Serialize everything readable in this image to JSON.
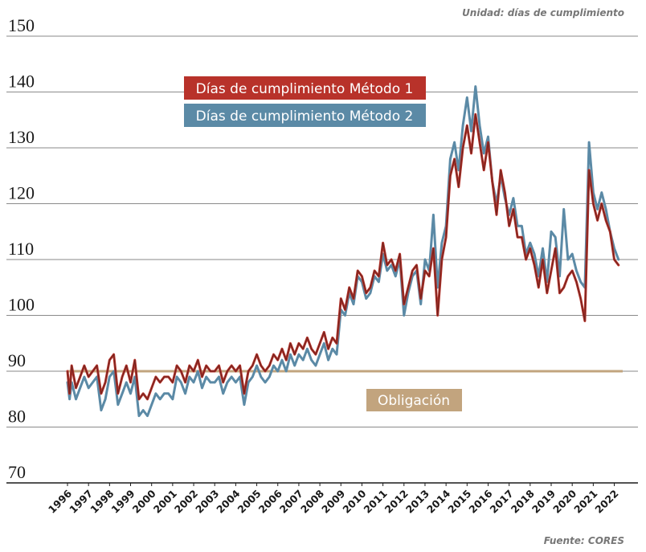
{
  "unit_note": "Unidad: días de cumplimiento",
  "source_note": "Fuente: CORES",
  "chart_data": {
    "type": "line",
    "ylim": [
      70,
      150
    ],
    "yticks": [
      70,
      80,
      90,
      100,
      110,
      120,
      130,
      140,
      150
    ],
    "xlim": [
      1996,
      2022.4
    ],
    "xticks": [
      1996,
      1997,
      1998,
      1999,
      2000,
      2001,
      2002,
      2003,
      2004,
      2005,
      2006,
      2007,
      2008,
      2009,
      2010,
      2011,
      2012,
      2013,
      2014,
      2015,
      2016,
      2017,
      2018,
      2019,
      2020,
      2021,
      2022
    ],
    "series": [
      {
        "name": "Días de cumplimiento Método 1",
        "color": "#b8322a",
        "x": [
          1996.0,
          1996.1,
          1996.2,
          1996.4,
          1996.6,
          1996.8,
          1997.0,
          1997.2,
          1997.4,
          1997.6,
          1997.8,
          1998.0,
          1998.2,
          1998.4,
          1998.6,
          1998.8,
          1999.0,
          1999.2,
          1999.4,
          1999.6,
          1999.8,
          2000.0,
          2000.2,
          2000.4,
          2000.6,
          2000.8,
          2001.0,
          2001.2,
          2001.4,
          2001.6,
          2001.8,
          2002.0,
          2002.2,
          2002.4,
          2002.6,
          2002.8,
          2003.0,
          2003.2,
          2003.4,
          2003.6,
          2003.8,
          2004.0,
          2004.2,
          2004.4,
          2004.6,
          2004.8,
          2005.0,
          2005.2,
          2005.4,
          2005.6,
          2005.8,
          2006.0,
          2006.2,
          2006.4,
          2006.6,
          2006.8,
          2007.0,
          2007.2,
          2007.4,
          2007.6,
          2007.8,
          2008.0,
          2008.2,
          2008.4,
          2008.6,
          2008.8,
          2009.0,
          2009.2,
          2009.4,
          2009.6,
          2009.8,
          2010.0,
          2010.2,
          2010.4,
          2010.6,
          2010.8,
          2011.0,
          2011.2,
          2011.4,
          2011.6,
          2011.8,
          2012.0,
          2012.2,
          2012.4,
          2012.6,
          2012.8,
          2013.0,
          2013.2,
          2013.4,
          2013.6,
          2013.8,
          2014.0,
          2014.2,
          2014.4,
          2014.6,
          2014.8,
          2015.0,
          2015.2,
          2015.4,
          2015.6,
          2015.8,
          2016.0,
          2016.2,
          2016.4,
          2016.6,
          2016.8,
          2017.0,
          2017.2,
          2017.4,
          2017.6,
          2017.8,
          2018.0,
          2018.2,
          2018.4,
          2018.6,
          2018.8,
          2019.0,
          2019.2,
          2019.4,
          2019.6,
          2019.8,
          2020.0,
          2020.2,
          2020.4,
          2020.6,
          2020.8,
          2021.0,
          2021.2,
          2021.4,
          2021.6,
          2021.8,
          2022.0,
          2022.2
        ],
        "values": [
          90,
          86,
          91,
          87,
          89,
          91,
          89,
          90,
          91,
          86,
          88,
          92,
          93,
          86,
          89,
          91,
          88,
          92,
          85,
          86,
          85,
          87,
          89,
          88,
          89,
          89,
          88,
          91,
          90,
          88,
          91,
          90,
          92,
          89,
          91,
          90,
          90,
          91,
          88,
          90,
          91,
          90,
          91,
          86,
          90,
          91,
          93,
          91,
          90,
          91,
          93,
          92,
          94,
          92,
          95,
          93,
          95,
          94,
          96,
          94,
          93,
          95,
          97,
          94,
          96,
          95,
          103,
          101,
          105,
          103,
          108,
          107,
          104,
          105,
          108,
          107,
          113,
          109,
          110,
          108,
          111,
          102,
          105,
          108,
          109,
          103,
          108,
          107,
          112,
          100,
          110,
          114,
          125,
          128,
          123,
          130,
          134,
          129,
          136,
          131,
          126,
          131,
          124,
          118,
          126,
          122,
          116,
          119,
          114,
          114,
          110,
          112,
          109,
          105,
          110,
          104,
          108,
          112,
          104,
          105,
          107,
          108,
          106,
          103,
          99,
          126,
          120,
          117,
          120,
          117,
          115,
          110,
          109
        ]
      },
      {
        "name": "Días de cumplimiento Método 2",
        "color": "#5b8aa6",
        "x": [
          1996.0,
          1996.1,
          1996.2,
          1996.4,
          1996.6,
          1996.8,
          1997.0,
          1997.2,
          1997.4,
          1997.6,
          1997.8,
          1998.0,
          1998.2,
          1998.4,
          1998.6,
          1998.8,
          1999.0,
          1999.2,
          1999.4,
          1999.6,
          1999.8,
          2000.0,
          2000.2,
          2000.4,
          2000.6,
          2000.8,
          2001.0,
          2001.2,
          2001.4,
          2001.6,
          2001.8,
          2002.0,
          2002.2,
          2002.4,
          2002.6,
          2002.8,
          2003.0,
          2003.2,
          2003.4,
          2003.6,
          2003.8,
          2004.0,
          2004.2,
          2004.4,
          2004.6,
          2004.8,
          2005.0,
          2005.2,
          2005.4,
          2005.6,
          2005.8,
          2006.0,
          2006.2,
          2006.4,
          2006.6,
          2006.8,
          2007.0,
          2007.2,
          2007.4,
          2007.6,
          2007.8,
          2008.0,
          2008.2,
          2008.4,
          2008.6,
          2008.8,
          2009.0,
          2009.2,
          2009.4,
          2009.6,
          2009.8,
          2010.0,
          2010.2,
          2010.4,
          2010.6,
          2010.8,
          2011.0,
          2011.2,
          2011.4,
          2011.6,
          2011.8,
          2012.0,
          2012.2,
          2012.4,
          2012.6,
          2012.8,
          2013.0,
          2013.2,
          2013.4,
          2013.6,
          2013.8,
          2014.0,
          2014.2,
          2014.4,
          2014.6,
          2014.8,
          2015.0,
          2015.2,
          2015.4,
          2015.6,
          2015.8,
          2016.0,
          2016.2,
          2016.4,
          2016.6,
          2016.8,
          2017.0,
          2017.2,
          2017.4,
          2017.6,
          2017.8,
          2018.0,
          2018.2,
          2018.4,
          2018.6,
          2018.8,
          2019.0,
          2019.2,
          2019.4,
          2019.6,
          2019.8,
          2020.0,
          2020.2,
          2020.4,
          2020.6,
          2020.8,
          2021.0,
          2021.2,
          2021.4,
          2021.6,
          2021.8,
          2022.0,
          2022.2
        ],
        "values": [
          88,
          85,
          88,
          85,
          87,
          89,
          87,
          88,
          89,
          83,
          85,
          89,
          90,
          84,
          86,
          88,
          86,
          89,
          82,
          83,
          82,
          84,
          86,
          85,
          86,
          86,
          85,
          89,
          88,
          86,
          89,
          88,
          90,
          87,
          89,
          88,
          88,
          89,
          86,
          88,
          89,
          88,
          89,
          84,
          88,
          89,
          91,
          89,
          88,
          89,
          91,
          90,
          92,
          90,
          93,
          91,
          93,
          92,
          94,
          92,
          91,
          93,
          95,
          92,
          94,
          93,
          101,
          100,
          104,
          102,
          107,
          106,
          103,
          104,
          107,
          106,
          111,
          108,
          109,
          107,
          110,
          100,
          104,
          107,
          108,
          102,
          110,
          108,
          118,
          105,
          113,
          116,
          128,
          131,
          126,
          134,
          139,
          133,
          141,
          134,
          129,
          132,
          124,
          120,
          125,
          121,
          118,
          121,
          116,
          116,
          111,
          113,
          111,
          107,
          112,
          106,
          115,
          114,
          107,
          119,
          110,
          111,
          108,
          106,
          105,
          131,
          122,
          119,
          122,
          119,
          115,
          112,
          110
        ]
      }
    ],
    "reference_line": {
      "label": "Obligación",
      "value": 90,
      "color": "#c2a47e"
    }
  }
}
